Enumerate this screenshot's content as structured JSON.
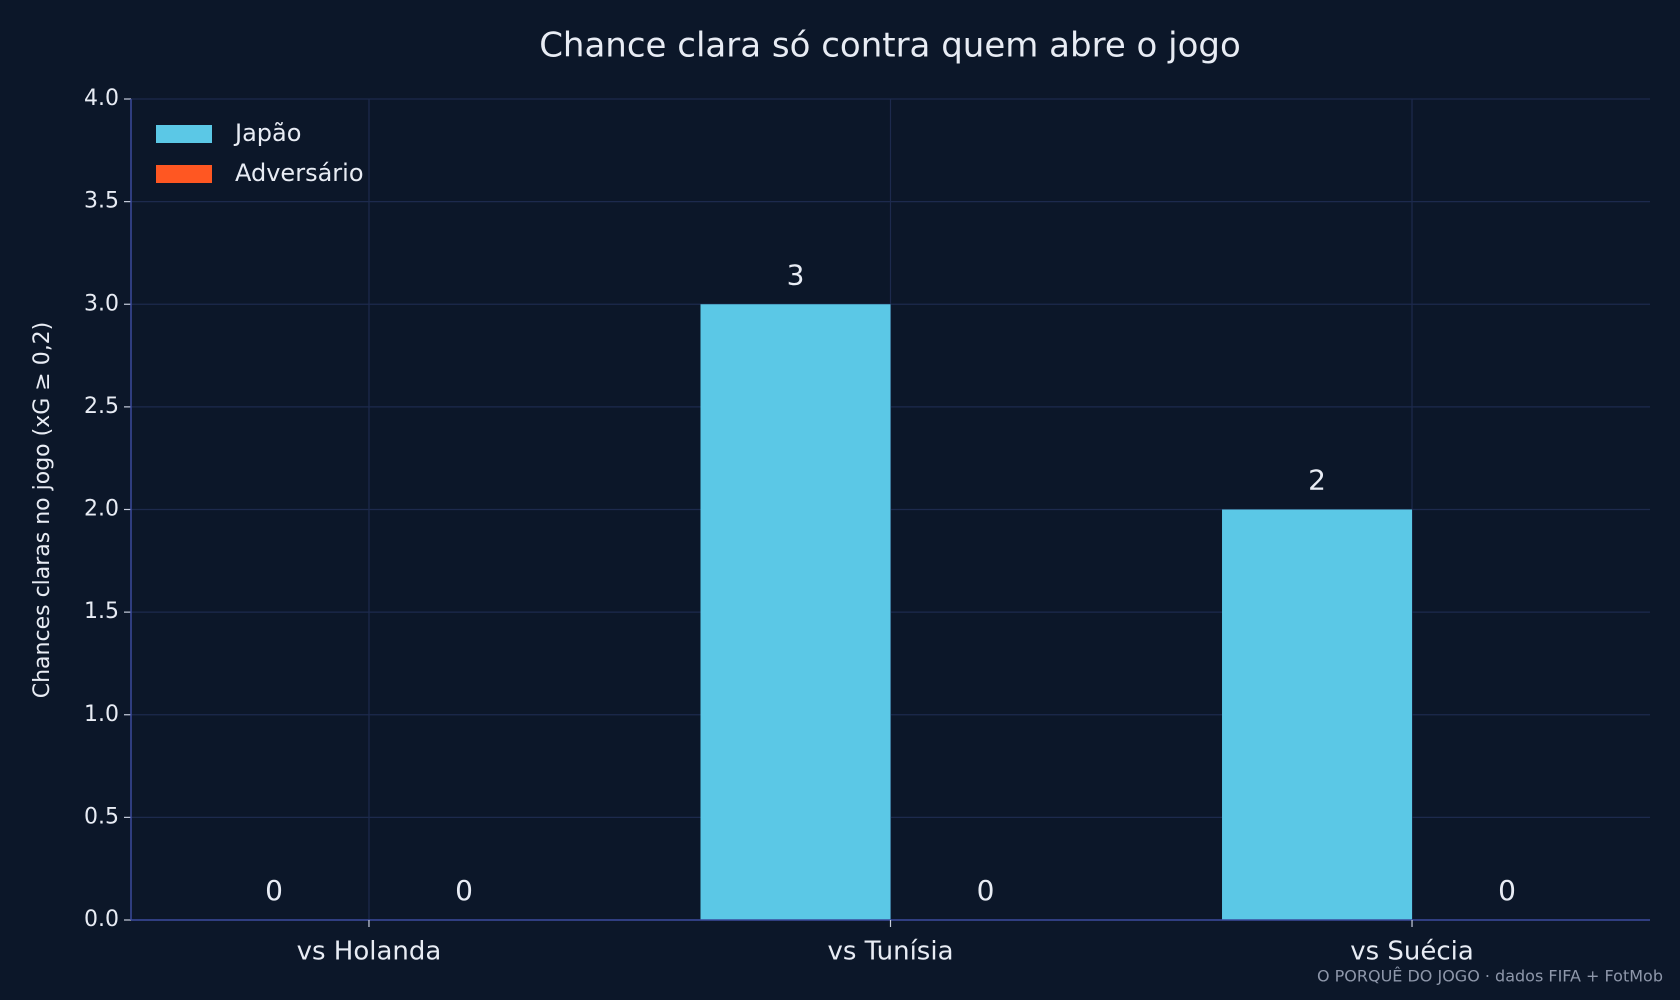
{
  "chart_data": {
    "type": "bar",
    "title": "Chance clara só contra quem abre o jogo",
    "y_label": "Chances claras no jogo (xG ≥ 0,2)",
    "source": "O PORQUÊ DO JOGO · dados FIFA + FotMob",
    "categories": [
      "vs Holanda",
      "vs Tunísia",
      "vs Suécia"
    ],
    "series": [
      {
        "name": "Japão",
        "color": "#5bc8e6",
        "values": [
          0,
          3,
          2
        ]
      },
      {
        "name": "Adversário",
        "color": "#ff5722",
        "values": [
          0,
          0,
          0
        ]
      }
    ],
    "ylim": [
      0,
      4
    ],
    "yticks": [
      {
        "value": 0,
        "label": "0.0"
      },
      {
        "value": 0.5,
        "label": "0.5"
      },
      {
        "value": 1,
        "label": "1.0"
      },
      {
        "value": 1.5,
        "label": "1.5"
      },
      {
        "value": 2,
        "label": "2.0"
      },
      {
        "value": 2.5,
        "label": "2.5"
      },
      {
        "value": 3,
        "label": "3.0"
      },
      {
        "value": 3.5,
        "label": "3.5"
      },
      {
        "value": 4,
        "label": "4.0"
      }
    ],
    "grid": true,
    "legend": "upper left"
  }
}
